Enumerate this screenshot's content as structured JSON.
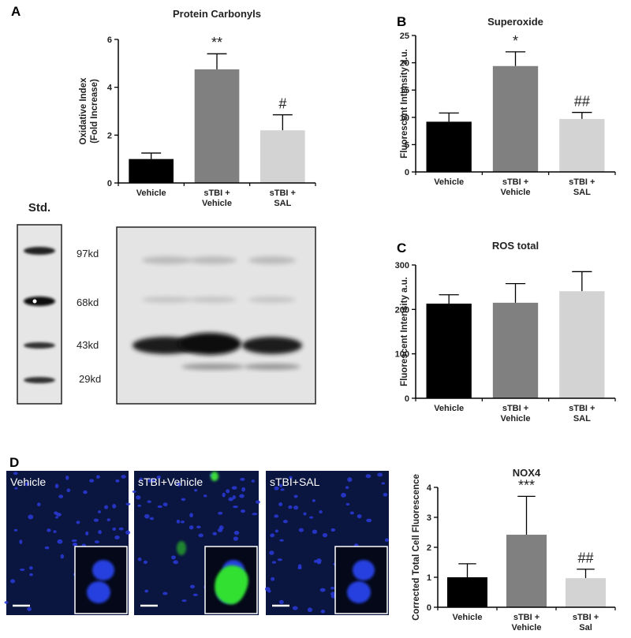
{
  "chart_data": [
    {
      "type": "bar",
      "title": "Protein Carbonyls",
      "y_label": [
        "Oxidative Index",
        "(Fold Increase)"
      ],
      "categories": [
        [
          "Vehicle"
        ],
        [
          "sTBI +",
          "Vehicle"
        ],
        [
          "sTBI +",
          "SAL"
        ]
      ],
      "values": [
        1.0,
        4.75,
        2.2
      ],
      "errors": [
        0.25,
        0.65,
        0.65
      ],
      "colors": [
        "#000000",
        "#808080",
        "#d3d3d3"
      ],
      "annotations": [
        null,
        "**",
        "#"
      ],
      "ylim": [
        0,
        6
      ],
      "yticks": [
        0,
        2,
        4,
        6
      ]
    },
    {
      "type": "bar",
      "title": "Superoxide",
      "y_label": [
        "Fluorescent Intensity a.u."
      ],
      "categories": [
        [
          "Vehicle"
        ],
        [
          "sTBI +",
          "Vehicle"
        ],
        [
          "sTBI +",
          "SAL"
        ]
      ],
      "values": [
        9.2,
        19.4,
        9.7
      ],
      "errors": [
        1.6,
        2.6,
        1.2
      ],
      "colors": [
        "#000000",
        "#808080",
        "#d3d3d3"
      ],
      "annotations": [
        null,
        "*",
        "##"
      ],
      "ylim": [
        0,
        25
      ],
      "yticks": [
        0,
        5,
        10,
        15,
        20,
        25
      ]
    },
    {
      "type": "bar",
      "title": "ROS total",
      "y_label": [
        "Fluorescent Intensity a.u."
      ],
      "categories": [
        [
          "Vehicle"
        ],
        [
          "sTBI +",
          "Vehicle"
        ],
        [
          "sTBI +",
          "SAL"
        ]
      ],
      "values": [
        213,
        215,
        241
      ],
      "errors": [
        20,
        43,
        44
      ],
      "colors": [
        "#000000",
        "#808080",
        "#d3d3d3"
      ],
      "ylim": [
        0,
        300
      ],
      "yticks": [
        0,
        100,
        200,
        300
      ]
    },
    {
      "type": "bar",
      "title": "NOX4",
      "y_label": [
        "Corrected Total Cell Fluorescence"
      ],
      "categories": [
        [
          "Vehicle"
        ],
        [
          "sTBI +",
          "Vehicle"
        ],
        [
          "sTBI +",
          "Sal"
        ]
      ],
      "values": [
        1.0,
        2.42,
        0.97
      ],
      "errors": [
        0.45,
        1.28,
        0.3
      ],
      "colors": [
        "#000000",
        "#808080",
        "#d3d3d3"
      ],
      "annotations": [
        null,
        "***",
        "##"
      ],
      "ylim": [
        0,
        4
      ],
      "yticks": [
        0,
        1,
        2,
        3,
        4
      ]
    }
  ],
  "panel_labels": [
    "A",
    "B",
    "C",
    "D"
  ],
  "blot": {
    "standard_label": "Std.",
    "markers": [
      "97kd",
      "68kd",
      "43kd",
      "29kd"
    ]
  },
  "micrograph_labels": [
    "Vehicle",
    "sTBI+Vehicle",
    "sTBI+SAL"
  ]
}
